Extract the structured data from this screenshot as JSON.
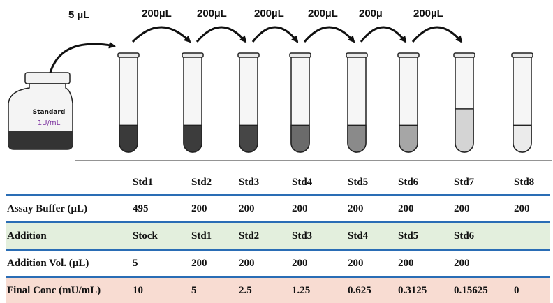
{
  "vial": {
    "label": "Standard",
    "concentration": "1U/mL"
  },
  "transfers": [
    "5 µL",
    "200µL",
    "200µL",
    "200µL",
    "200µL",
    "200µ",
    "200µL"
  ],
  "tube_fills": [
    {
      "level": 0.28,
      "color": "#3a3a3a"
    },
    {
      "level": 0.28,
      "color": "#3c3c3c"
    },
    {
      "level": 0.28,
      "color": "#464646"
    },
    {
      "level": 0.28,
      "color": "#6b6b6b"
    },
    {
      "level": 0.28,
      "color": "#8a8a8a"
    },
    {
      "level": 0.28,
      "color": "#a6a6a6"
    },
    {
      "level": 0.45,
      "color": "#d4d4d4"
    },
    {
      "level": 0.28,
      "color": "#ebebeb"
    }
  ],
  "table": {
    "columns": [
      "Std1",
      "Std2",
      "Std3",
      "Std4",
      "Std5",
      "Std6",
      "Std7",
      "Std8"
    ],
    "rows": [
      {
        "label": "Assay Buffer (µL)",
        "values": [
          "495",
          "200",
          "200",
          "200",
          "200",
          "200",
          "200",
          "200"
        ]
      },
      {
        "label": "Addition",
        "values": [
          "Stock",
          "Std1",
          "Std2",
          "Std3",
          "Std4",
          "Std5",
          "Std6",
          ""
        ]
      },
      {
        "label": "Addition Vol. (µL)",
        "values": [
          "5",
          "200",
          "200",
          "200",
          "200",
          "200",
          "200",
          ""
        ]
      },
      {
        "label": "Final Conc (mU/mL)",
        "values": [
          "10",
          "5",
          "2.5",
          "1.25",
          "0.625",
          "0.3125",
          "0.15625",
          "0"
        ]
      }
    ]
  }
}
